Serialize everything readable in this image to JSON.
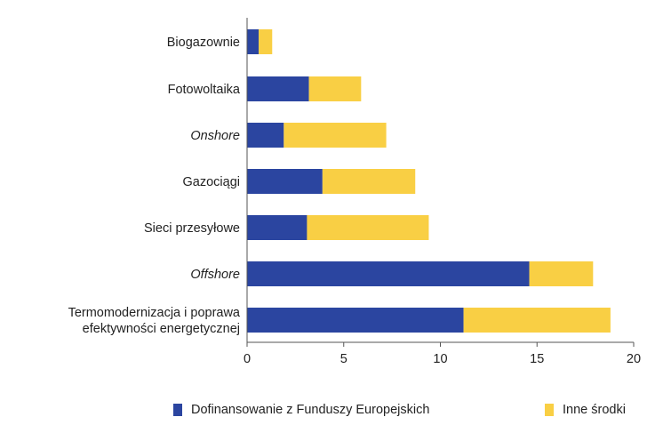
{
  "chart_data": {
    "type": "bar",
    "orientation": "horizontal",
    "stacked": true,
    "categories": [
      "Biogazownie",
      "Fotowoltaika",
      "Onshore",
      "Gazociągi",
      "Sieci przesyłowe",
      "Offshore",
      "Termomodernizacja i poprawa\nefektywności energetycznej"
    ],
    "italic_categories": [
      "Onshore",
      "Offshore"
    ],
    "series": [
      {
        "name": "Dofinansowanie z Funduszy Europejskich",
        "color": "#2b45a0",
        "values": [
          0.6,
          3.2,
          1.9,
          3.9,
          3.1,
          14.6,
          11.2
        ]
      },
      {
        "name": "Inne środki",
        "color": "#f9cf44",
        "values": [
          0.7,
          2.7,
          5.3,
          4.8,
          6.3,
          3.3,
          7.6
        ]
      }
    ],
    "xlim": [
      0,
      20
    ],
    "xticks": [
      "0",
      "5",
      "10",
      "15",
      "20"
    ],
    "grid": false,
    "legend_position": "bottom",
    "title": "",
    "xlabel": "",
    "ylabel": ""
  }
}
